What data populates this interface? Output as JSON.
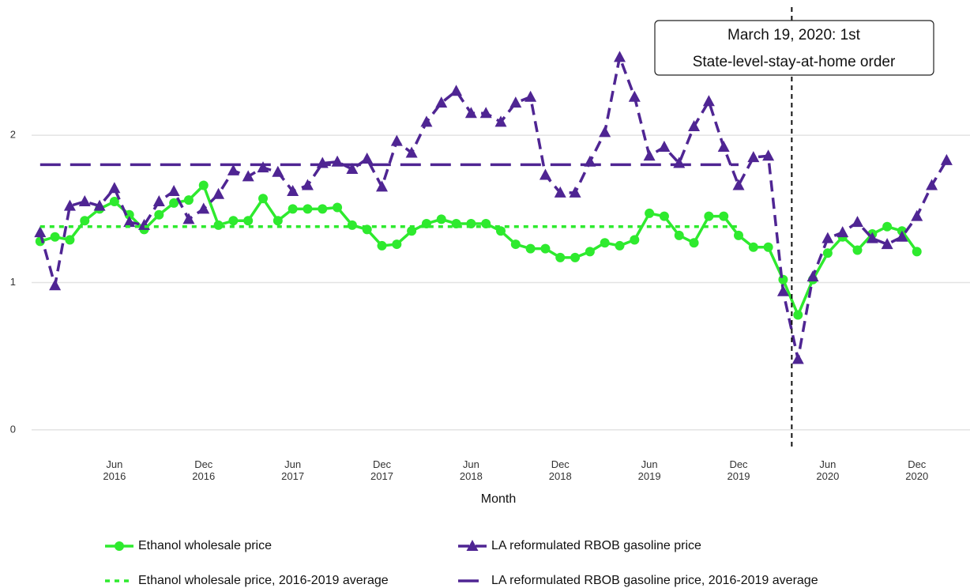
{
  "chart_data": {
    "type": "line",
    "x_label": "Month",
    "xlim": [
      "2015-12",
      "2021-04"
    ],
    "xticks": [
      {
        "value": "2016-06",
        "label": "Jun\n2016"
      },
      {
        "value": "2016-12",
        "label": "Dec\n2016"
      },
      {
        "value": "2017-06",
        "label": "Jun\n2017"
      },
      {
        "value": "2017-12",
        "label": "Dec\n2017"
      },
      {
        "value": "2018-06",
        "label": "Jun\n2018"
      },
      {
        "value": "2018-12",
        "label": "Dec\n2018"
      },
      {
        "value": "2019-06",
        "label": "Jun\n2019"
      },
      {
        "value": "2019-12",
        "label": "Dec\n2019"
      },
      {
        "value": "2020-06",
        "label": "Jun\n2020"
      },
      {
        "value": "2020-12",
        "label": "Dec\n2020"
      }
    ],
    "ylim": [
      -0.14,
      2.87
    ],
    "yticks": [
      0,
      1,
      2
    ],
    "grid": true,
    "legend": "bottom",
    "series": [
      {
        "name": "Ethanol wholesale price",
        "color": "#2eea2e",
        "linestyle": "solid",
        "marker": "circle",
        "x": [
          "2016-01",
          "2016-02",
          "2016-03",
          "2016-04",
          "2016-05",
          "2016-06",
          "2016-07",
          "2016-08",
          "2016-09",
          "2016-10",
          "2016-11",
          "2016-12",
          "2017-01",
          "2017-02",
          "2017-03",
          "2017-04",
          "2017-05",
          "2017-06",
          "2017-07",
          "2017-08",
          "2017-09",
          "2017-10",
          "2017-11",
          "2017-12",
          "2018-01",
          "2018-02",
          "2018-03",
          "2018-04",
          "2018-05",
          "2018-06",
          "2018-07",
          "2018-08",
          "2018-09",
          "2018-10",
          "2018-11",
          "2018-12",
          "2019-01",
          "2019-02",
          "2019-03",
          "2019-04",
          "2019-05",
          "2019-06",
          "2019-07",
          "2019-08",
          "2019-09",
          "2019-10",
          "2019-11",
          "2019-12",
          "2020-01",
          "2020-02",
          "2020-03",
          "2020-04",
          "2020-05",
          "2020-06",
          "2020-07",
          "2020-08",
          "2020-09",
          "2020-10",
          "2020-11",
          "2020-12"
        ],
        "values": [
          1.28,
          1.31,
          1.29,
          1.42,
          1.5,
          1.55,
          1.46,
          1.36,
          1.46,
          1.54,
          1.56,
          1.66,
          1.39,
          1.42,
          1.42,
          1.57,
          1.42,
          1.5,
          1.5,
          1.5,
          1.51,
          1.39,
          1.36,
          1.25,
          1.26,
          1.35,
          1.4,
          1.43,
          1.4,
          1.4,
          1.4,
          1.35,
          1.26,
          1.23,
          1.23,
          1.17,
          1.17,
          1.21,
          1.27,
          1.25,
          1.29,
          1.47,
          1.45,
          1.32,
          1.27,
          1.45,
          1.45,
          1.32,
          1.24,
          1.24,
          1.02,
          0.78,
          1.02,
          1.2,
          1.31,
          1.22,
          1.33,
          1.38,
          1.35,
          1.21
        ]
      },
      {
        "name": "LA reformulated RBOB gasoline price",
        "color": "#4f2593",
        "linestyle": "dashed",
        "marker": "triangle",
        "x": [
          "2016-01",
          "2016-02",
          "2016-03",
          "2016-04",
          "2016-05",
          "2016-06",
          "2016-07",
          "2016-08",
          "2016-09",
          "2016-10",
          "2016-11",
          "2016-12",
          "2017-01",
          "2017-02",
          "2017-03",
          "2017-04",
          "2017-05",
          "2017-06",
          "2017-07",
          "2017-08",
          "2017-09",
          "2017-10",
          "2017-11",
          "2017-12",
          "2018-01",
          "2018-02",
          "2018-03",
          "2018-04",
          "2018-05",
          "2018-06",
          "2018-07",
          "2018-08",
          "2018-09",
          "2018-10",
          "2018-11",
          "2018-12",
          "2019-01",
          "2019-02",
          "2019-03",
          "2019-04",
          "2019-05",
          "2019-06",
          "2019-07",
          "2019-08",
          "2019-09",
          "2019-10",
          "2019-11",
          "2019-12",
          "2020-01",
          "2020-02",
          "2020-03",
          "2020-04",
          "2020-05",
          "2020-06",
          "2020-07",
          "2020-08",
          "2020-09",
          "2020-10",
          "2020-11",
          "2020-12",
          "2021-01",
          "2021-02"
        ],
        "values": [
          1.34,
          0.98,
          1.52,
          1.55,
          1.52,
          1.64,
          1.41,
          1.39,
          1.55,
          1.62,
          1.43,
          1.5,
          1.6,
          1.76,
          1.72,
          1.78,
          1.75,
          1.62,
          1.66,
          1.81,
          1.82,
          1.77,
          1.84,
          1.65,
          1.96,
          1.88,
          2.09,
          2.22,
          2.3,
          2.15,
          2.15,
          2.09,
          2.22,
          2.26,
          1.73,
          1.61,
          1.61,
          1.82,
          2.02,
          2.53,
          2.26,
          1.86,
          1.92,
          1.81,
          2.06,
          2.23,
          1.92,
          1.66,
          1.85,
          1.86,
          0.94,
          0.48,
          1.04,
          1.3,
          1.34,
          1.41,
          1.3,
          1.26,
          1.31,
          1.45,
          1.66,
          1.83
        ]
      },
      {
        "name": "Ethanol wholesale price, 2016-2019 average",
        "color": "#2eea2e",
        "linestyle": "dotted",
        "marker": null,
        "x": [
          "2016-01",
          "2019-12"
        ],
        "values": [
          1.38,
          1.38
        ]
      },
      {
        "name": "LA reformulated RBOB gasoline price, 2016-2019 average",
        "color": "#4f2593",
        "linestyle": "longdash",
        "marker": null,
        "x": [
          "2016-01",
          "2019-12"
        ],
        "values": [
          1.8,
          1.8
        ]
      }
    ],
    "annotation": {
      "x": "2020-03-19",
      "lines": [
        "March 19, 2020: 1st",
        "State-level-stay-at-home order"
      ]
    }
  }
}
